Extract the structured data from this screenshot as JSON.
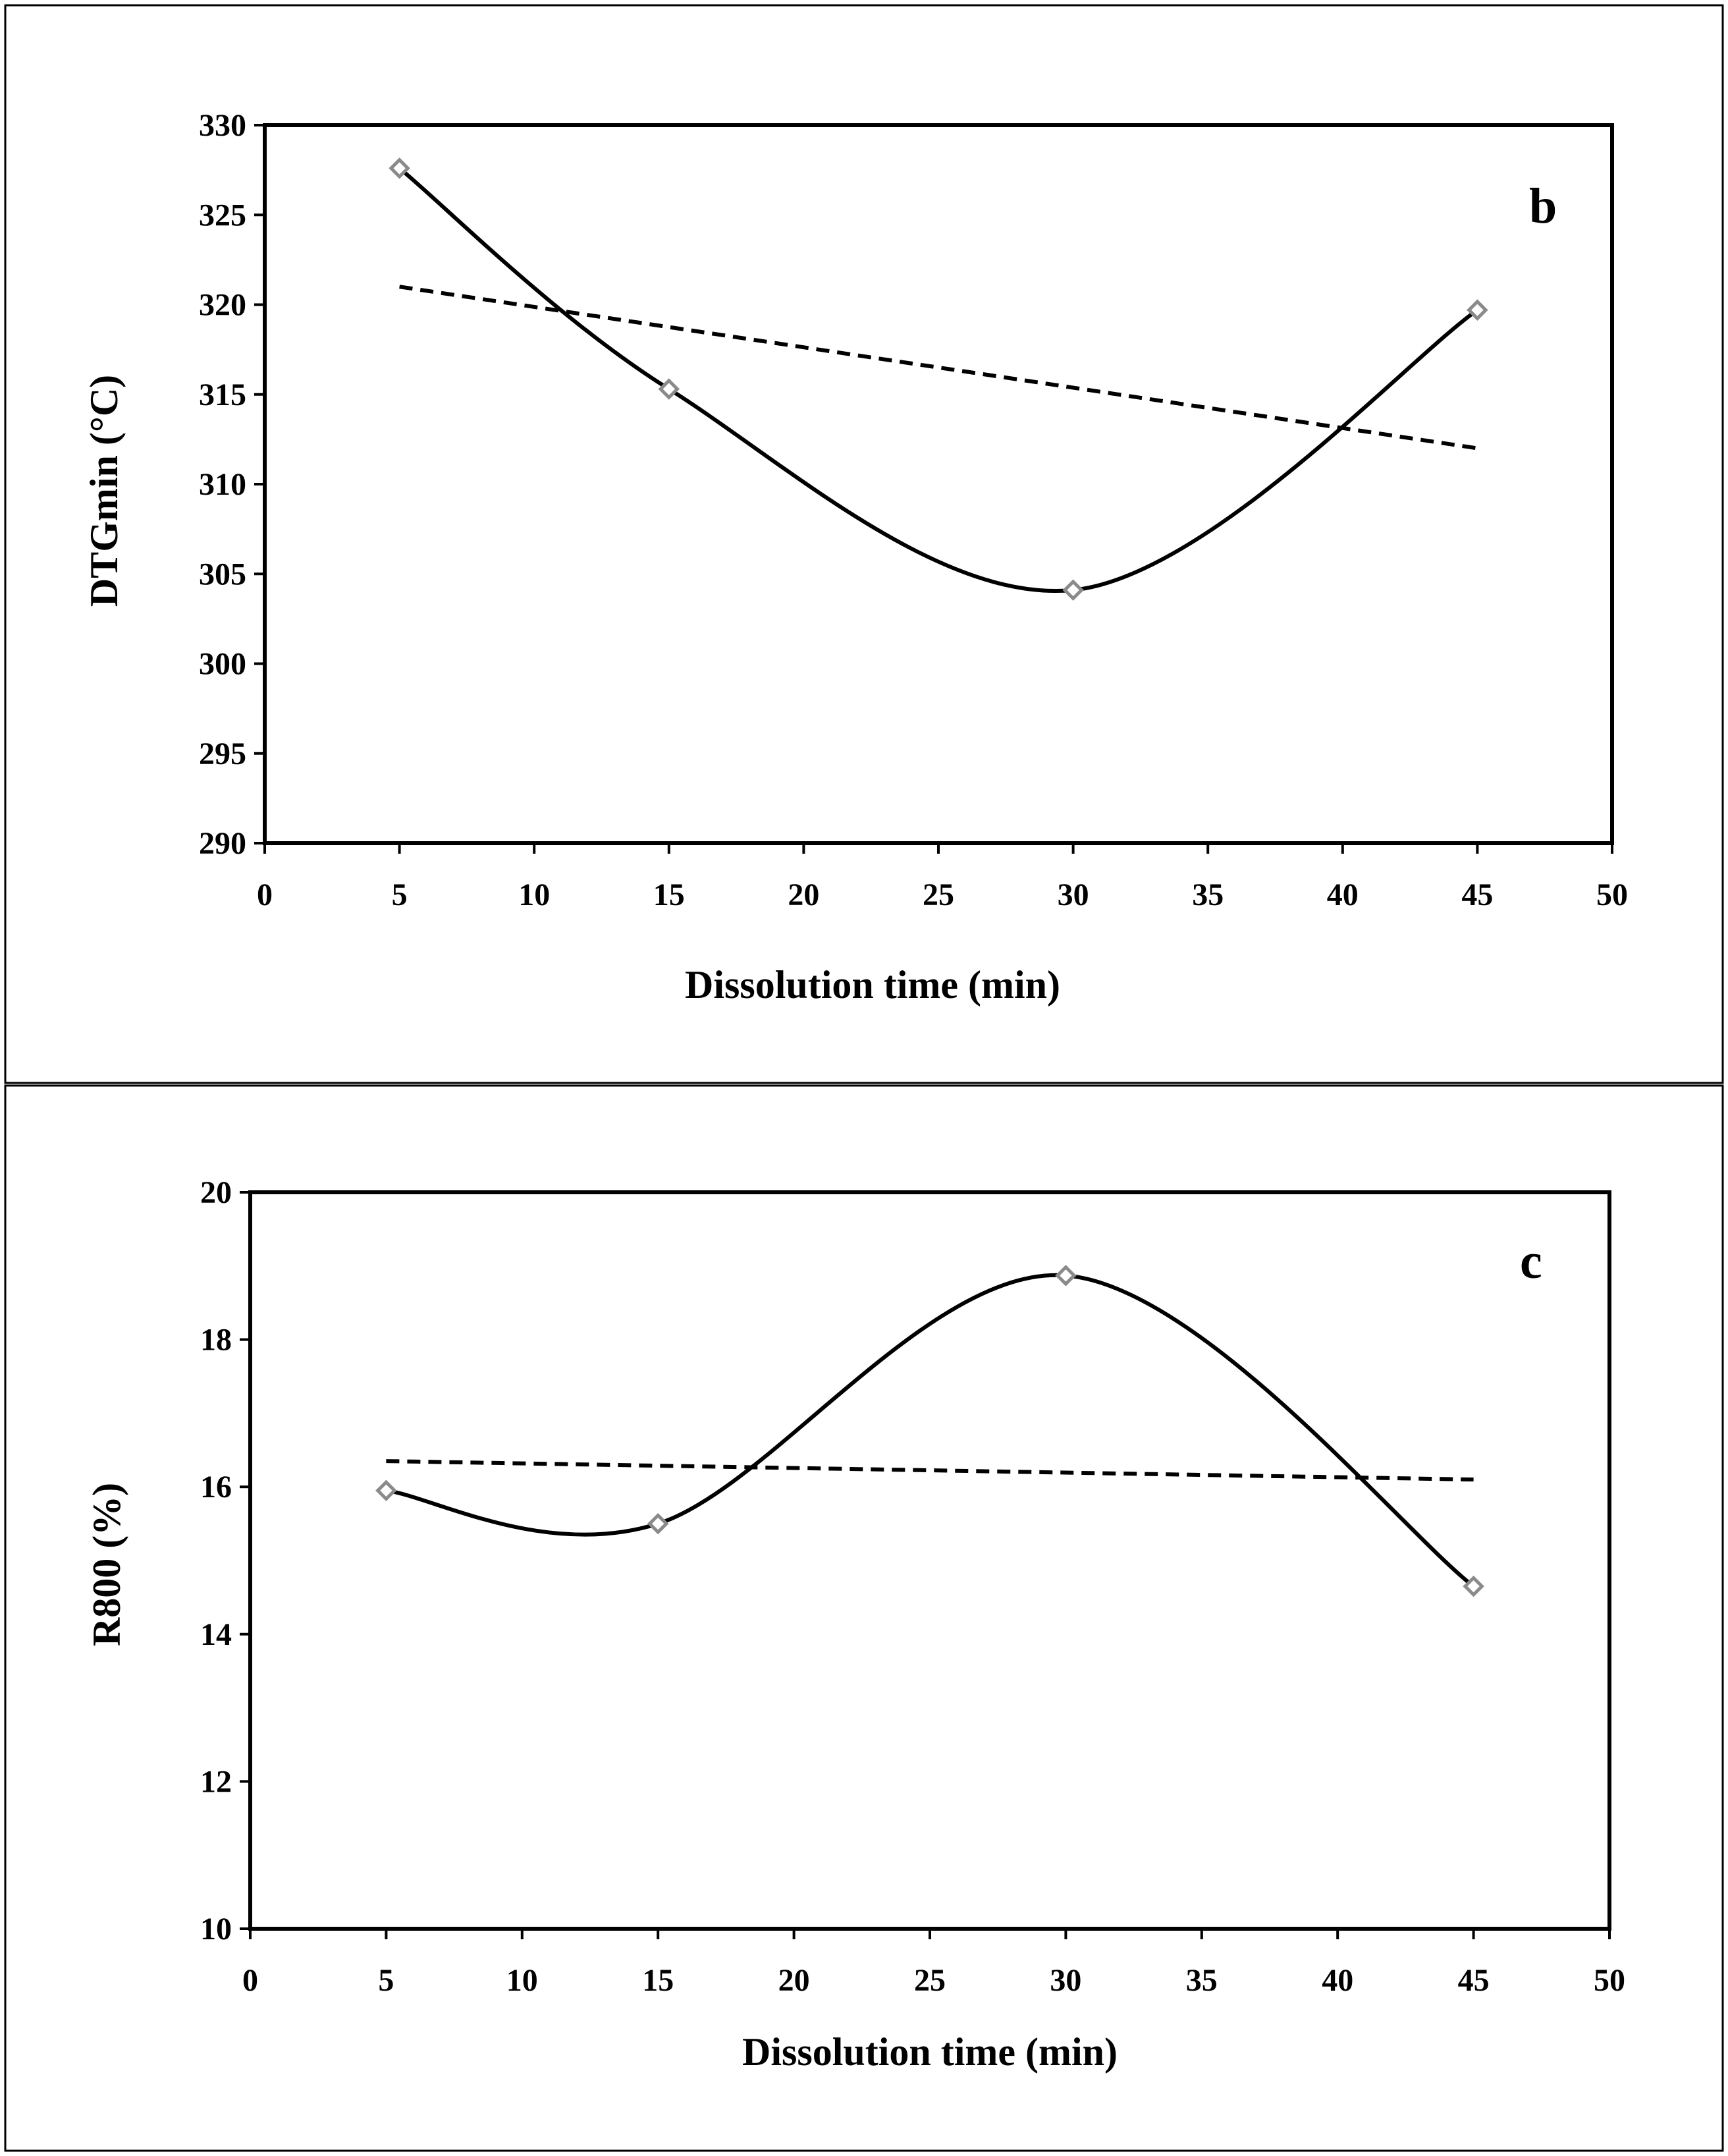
{
  "chart_data": [
    {
      "type": "line",
      "panel_label": "b",
      "title": "",
      "xlabel": "Dissolution time (min)",
      "ylabel": "DTGmin (°C)",
      "xlim": [
        0,
        50
      ],
      "ylim": [
        290,
        330
      ],
      "x_ticks": [
        0,
        5,
        10,
        15,
        20,
        25,
        30,
        35,
        40,
        45,
        50
      ],
      "y_ticks": [
        290,
        295,
        300,
        305,
        310,
        315,
        320,
        325,
        330
      ],
      "grid": false,
      "series": [
        {
          "name": "DTGmin",
          "style": "smooth-solid-markers",
          "x": [
            5,
            15,
            30,
            45
          ],
          "y": [
            327.6,
            315.3,
            304.1,
            319.7
          ]
        },
        {
          "name": "Linear trend",
          "style": "dashed",
          "x": [
            5,
            45
          ],
          "y": [
            321.0,
            312.0
          ]
        }
      ],
      "colors": {
        "line": "#000000",
        "marker_stroke": "#8a8a8a",
        "marker_fill": "#ffffff"
      }
    },
    {
      "type": "line",
      "panel_label": "c",
      "title": "",
      "xlabel": "Dissolution time (min)",
      "ylabel": "R800 (%)",
      "xlim": [
        0,
        50
      ],
      "ylim": [
        10,
        20
      ],
      "x_ticks": [
        0,
        5,
        10,
        15,
        20,
        25,
        30,
        35,
        40,
        45,
        50
      ],
      "y_ticks": [
        10,
        12,
        14,
        16,
        18,
        20
      ],
      "grid": false,
      "series": [
        {
          "name": "R800",
          "style": "smooth-solid-markers",
          "x": [
            5,
            15,
            30,
            45
          ],
          "y": [
            15.95,
            15.5,
            18.87,
            14.65
          ]
        },
        {
          "name": "Linear trend",
          "style": "dashed",
          "x": [
            5,
            45
          ],
          "y": [
            16.35,
            16.1
          ]
        }
      ],
      "colors": {
        "line": "#000000",
        "marker_stroke": "#8a8a8a",
        "marker_fill": "#ffffff"
      }
    }
  ]
}
